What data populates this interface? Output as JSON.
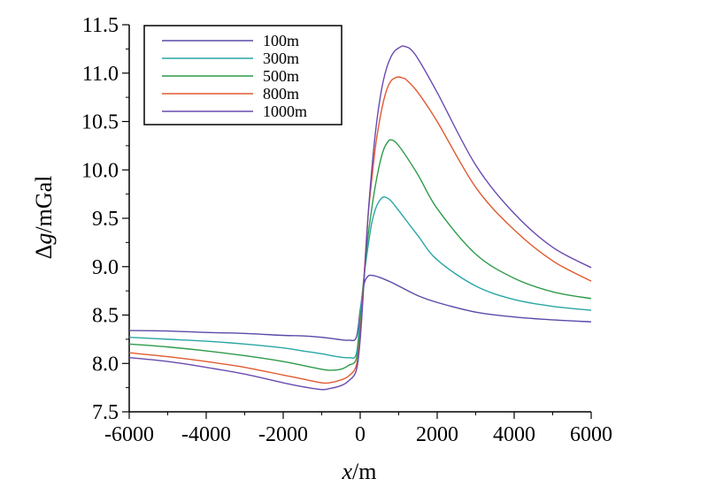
{
  "chart_data": {
    "type": "line",
    "xlabel_var": "x",
    "xlabel_unit": "/m",
    "ylabel_prefix": "Δ",
    "ylabel_var": "g",
    "ylabel_unit": "/mGal",
    "xlim": [
      -6000,
      6000
    ],
    "ylim": [
      7.5,
      11.5
    ],
    "x_ticks": [
      -6000,
      -4000,
      -2000,
      0,
      2000,
      4000,
      6000
    ],
    "x_tick_labels": [
      "-6000",
      "-4000",
      "-2000",
      "0",
      "2000",
      "4000",
      "6000"
    ],
    "y_ticks": [
      7.5,
      8.0,
      8.5,
      9.0,
      9.5,
      10.0,
      10.5,
      11.0,
      11.5
    ],
    "y_tick_labels": [
      "7.5",
      "8.0",
      "8.5",
      "9.0",
      "9.5",
      "10.0",
      "10.5",
      "11.0",
      "11.5"
    ],
    "grid": false,
    "legend_position": "top-left",
    "series": [
      {
        "name": "100m",
        "color": "#5a4aa8",
        "x": [
          -6000,
          -5000,
          -4000,
          -3000,
          -2000,
          -1500,
          -1000,
          -600,
          -300,
          -100,
          0,
          100,
          200,
          300,
          500,
          800,
          1000,
          1500,
          2000,
          3000,
          4000,
          5000,
          6000
        ],
        "y": [
          8.34,
          8.335,
          8.32,
          8.31,
          8.29,
          8.285,
          8.27,
          8.25,
          8.24,
          8.27,
          8.55,
          8.82,
          8.9,
          8.91,
          8.89,
          8.84,
          8.8,
          8.7,
          8.63,
          8.53,
          8.48,
          8.45,
          8.43
        ]
      },
      {
        "name": "300m",
        "color": "#2aa6a6",
        "x": [
          -6000,
          -5000,
          -4000,
          -3000,
          -2000,
          -1500,
          -1000,
          -600,
          -300,
          -100,
          0,
          100,
          200,
          300,
          400,
          500,
          600,
          700,
          800,
          1000,
          1500,
          2000,
          3000,
          4000,
          5000,
          6000
        ],
        "y": [
          8.27,
          8.25,
          8.23,
          8.2,
          8.16,
          8.13,
          8.1,
          8.07,
          8.06,
          8.1,
          8.5,
          8.9,
          9.2,
          9.45,
          9.6,
          9.68,
          9.72,
          9.71,
          9.68,
          9.58,
          9.32,
          9.07,
          8.8,
          8.66,
          8.59,
          8.55
        ]
      },
      {
        "name": "500m",
        "color": "#2e9a4a",
        "x": [
          -6000,
          -5000,
          -4000,
          -3000,
          -2000,
          -1500,
          -1000,
          -800,
          -500,
          -300,
          -100,
          0,
          100,
          200,
          300,
          400,
          500,
          600,
          700,
          800,
          1000,
          1500,
          2000,
          3000,
          4000,
          5000,
          6000
        ],
        "y": [
          8.2,
          8.17,
          8.13,
          8.08,
          8.02,
          7.98,
          7.94,
          7.93,
          7.94,
          7.98,
          8.05,
          8.4,
          8.9,
          9.3,
          9.6,
          9.85,
          10.05,
          10.2,
          10.28,
          10.31,
          10.25,
          9.95,
          9.6,
          9.13,
          8.88,
          8.74,
          8.67
        ]
      },
      {
        "name": "800m",
        "color": "#e05a30",
        "x": [
          -6000,
          -5000,
          -4000,
          -3000,
          -2000,
          -1500,
          -1000,
          -800,
          -500,
          -300,
          -100,
          0,
          100,
          200,
          300,
          400,
          500,
          600,
          700,
          800,
          900,
          1000,
          1100,
          1200,
          1500,
          2000,
          3000,
          4000,
          5000,
          6000
        ],
        "y": [
          8.11,
          8.07,
          8.02,
          7.96,
          7.88,
          7.84,
          7.8,
          7.8,
          7.83,
          7.87,
          7.98,
          8.3,
          8.9,
          9.5,
          9.9,
          10.25,
          10.5,
          10.7,
          10.84,
          10.92,
          10.95,
          10.96,
          10.95,
          10.93,
          10.8,
          10.5,
          9.82,
          9.38,
          9.06,
          8.85
        ]
      },
      {
        "name": "1000m",
        "color": "#6a4ab0",
        "x": [
          -6000,
          -5000,
          -4000,
          -3000,
          -2000,
          -1500,
          -1000,
          -800,
          -500,
          -300,
          -100,
          0,
          100,
          200,
          300,
          400,
          500,
          600,
          700,
          800,
          900,
          1000,
          1100,
          1200,
          1300,
          1500,
          2000,
          3000,
          4000,
          5000,
          6000
        ],
        "y": [
          8.06,
          8.02,
          7.96,
          7.89,
          7.8,
          7.76,
          7.73,
          7.74,
          7.77,
          7.82,
          7.93,
          8.25,
          8.85,
          9.5,
          10.0,
          10.4,
          10.7,
          10.92,
          11.07,
          11.17,
          11.23,
          11.26,
          11.28,
          11.27,
          11.25,
          11.15,
          10.8,
          10.05,
          9.55,
          9.2,
          8.99
        ]
      }
    ]
  }
}
